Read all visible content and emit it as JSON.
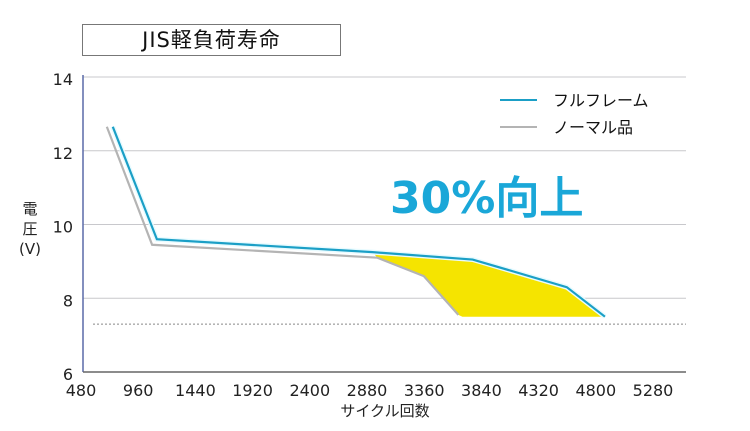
{
  "chart_data": {
    "type": "line",
    "title": "JIS軽負荷寿命",
    "xlabel": "サイクル回数",
    "ylabel": [
      "電",
      "圧",
      "(V)"
    ],
    "xlim": [
      480,
      5280
    ],
    "ylim": [
      6,
      14
    ],
    "x_ticks": [
      480,
      960,
      1440,
      1920,
      2400,
      2880,
      3360,
      3840,
      4320,
      4800,
      5280
    ],
    "y_ticks": [
      6,
      8,
      10,
      12,
      14
    ],
    "grid": "horizontal",
    "threshold_line": {
      "y": 7.3,
      "style": "dashed"
    },
    "legend_position": "top-right",
    "series": [
      {
        "name": "フルフレーム",
        "color": "#1b9fc6",
        "points": [
          [
            730,
            12.65
          ],
          [
            1100,
            9.6
          ],
          [
            2910,
            9.25
          ],
          [
            3750,
            9.05
          ],
          [
            4540,
            8.3
          ],
          [
            4860,
            7.5
          ]
        ]
      },
      {
        "name": "ノーマル品",
        "color": "#b4b4b4",
        "points": [
          [
            680,
            12.65
          ],
          [
            1060,
            9.45
          ],
          [
            2950,
            9.1
          ],
          [
            3340,
            8.6
          ],
          [
            3630,
            7.55
          ]
        ]
      }
    ],
    "fill_between": {
      "color": "#f5e400"
    },
    "annotation": "30%向上",
    "annotation_color": "#1aa7d8"
  }
}
